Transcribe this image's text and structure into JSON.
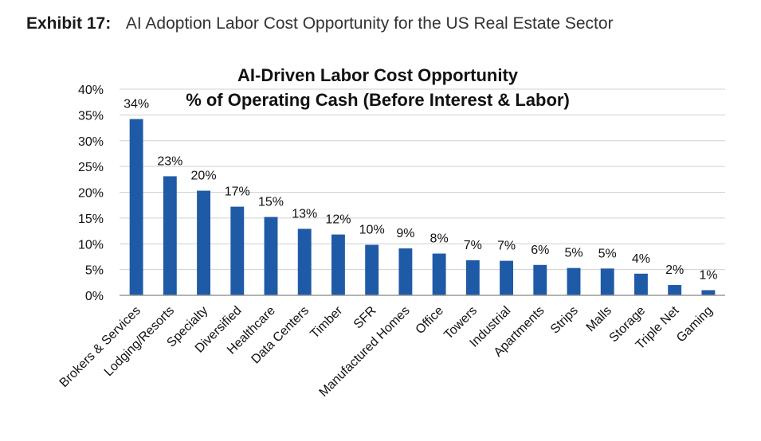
{
  "header": {
    "exhibit_label": "Exhibit 17:",
    "exhibit_title": "AI Adoption Labor Cost Opportunity for the US Real Estate Sector"
  },
  "chart_data": {
    "type": "bar",
    "title": [
      "AI-Driven Labor Cost Opportunity",
      "% of Operating Cash (Before Interest & Labor)"
    ],
    "xlabel": "",
    "ylabel": "",
    "categories": [
      "Brokers & Services",
      "Lodging/Resorts",
      "Specialty",
      "Diversified",
      "Healthcare",
      "Data Centers",
      "Timber",
      "SFR",
      "Manufactured Homes",
      "Office",
      "Towers",
      "Industrial",
      "Apartments",
      "Strips",
      "Malls",
      "Storage",
      "Triple Net",
      "Gaming"
    ],
    "values": [
      34.2,
      23.1,
      20.3,
      17.2,
      15.2,
      12.9,
      11.8,
      9.8,
      9.1,
      8.1,
      6.8,
      6.7,
      5.9,
      5.3,
      5.2,
      4.2,
      2.0,
      1.0
    ],
    "data_labels": [
      "34%",
      "23%",
      "20%",
      "17%",
      "15%",
      "13%",
      "12%",
      "10%",
      "9%",
      "8%",
      "7%",
      "7%",
      "6%",
      "5%",
      "5%",
      "4%",
      "2%",
      "1%"
    ],
    "yticks": [
      "0%",
      "5%",
      "10%",
      "15%",
      "20%",
      "25%",
      "30%",
      "35%",
      "40%"
    ],
    "ylim": [
      0,
      40
    ],
    "grid": true,
    "bar_color": "#1f5aa6"
  }
}
